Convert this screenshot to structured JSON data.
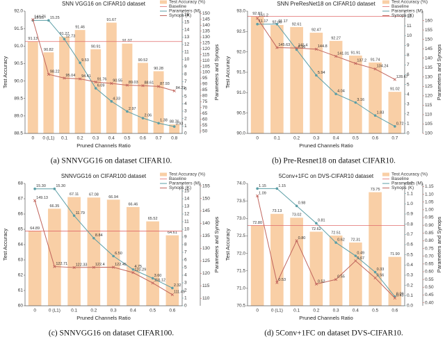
{
  "chart_data": [
    {
      "type": "combo",
      "title": "SNN VGG16 on CIFAR10 dataset",
      "x_label": "Pruned Channels Ratio",
      "y_label": "Test Accuracy",
      "y2_label": "Parameters and Synops",
      "categories": [
        "0",
        "0 (L1)",
        "0.1",
        "0.2",
        "0.3",
        "0.4",
        "0.5",
        "0.6",
        "0.7",
        "0.8"
      ],
      "series": [
        {
          "name": "Test Accuracy (%)",
          "kind": "bar",
          "color": "#f9cfa6",
          "values": [
            91.13,
            90.82,
            91.27,
            91.46,
            90.91,
            91.67,
            91.07,
            90.52,
            90.28,
            88.76
          ]
        },
        {
          "name": "Parameters (M)",
          "kind": "line",
          "axis": "y2",
          "color": "#5b9ea6",
          "values": [
            15.25,
            15.25,
            12.73,
            9.53,
            6.09,
            4.33,
            2.97,
            2.06,
            1.38,
            0.93
          ]
        },
        {
          "name": "Synops (K)",
          "kind": "line",
          "axis": "y3",
          "color": "#c0645c",
          "values": [
            144.76,
            98.22,
            95.04,
            94.41,
            91.76,
            90.55,
            89.03,
            88.61,
            87.93,
            84.21
          ]
        }
      ],
      "baseline": {
        "name": "Baseline",
        "value": 91.13,
        "color": "#e06a6a"
      },
      "ylim": [
        88.5,
        92
      ],
      "yticks": [
        88.5,
        {
          "value": 89,
          "label": "89.0"
        },
        89.5,
        {
          "value": 90,
          "label": "90.0"
        },
        90.5,
        {
          "value": 91,
          "label": "91.0"
        },
        91.5,
        {
          "value": 92,
          "label": "92.0"
        }
      ],
      "y2lim": [
        0,
        16.5
      ],
      "y2ticks": [
        0,
        1,
        2,
        3,
        4,
        5,
        6,
        7,
        8,
        9,
        10,
        11,
        12,
        13,
        14,
        15,
        16
      ],
      "y3lim": [
        48,
        152
      ],
      "y3ticks": [
        50,
        55,
        60,
        65,
        70,
        75,
        80,
        85,
        90,
        95,
        100,
        105,
        110,
        115,
        120,
        125,
        130,
        135,
        140,
        145,
        150
      ]
    },
    {
      "type": "combo",
      "title": "SNN PreResNet18 on CIFAR10 dataset",
      "x_label": "Pruned Channels Ratio",
      "y_label": "Test Accuracy",
      "y2_label": "Parameters and Synops",
      "categories": [
        "0",
        "0.1",
        "0.2",
        "0.3",
        "0.4",
        "0.5",
        "0.6",
        "0.7"
      ],
      "series": [
        {
          "name": "Test Accuracy (%)",
          "kind": "bar",
          "color": "#f9cfa6",
          "values": [
            92.87,
            92.66,
            92.61,
            92.47,
            92.27,
            91.91,
            91.74,
            91.02
          ]
        },
        {
          "name": "Parameters (M)",
          "kind": "line",
          "axis": "y2",
          "color": "#5b9ea6",
          "values": [
            11.17,
            11.17,
            8.56,
            5.94,
            4.04,
            3.16,
            1.83,
            0.72
          ]
        },
        {
          "name": "Synops (K)",
          "kind": "line",
          "axis": "y3",
          "color": "#c0645c",
          "values": [
            161.2,
            145.63,
            145.4,
            144.8,
            141.01,
            137.2,
            134.24,
            128.67
          ]
        }
      ],
      "baseline": {
        "name": "Baseline",
        "value": 92.87,
        "color": "#e06a6a"
      },
      "ylim": [
        90,
        93
      ],
      "yticks": [
        {
          "value": 90,
          "label": "90.0"
        },
        90.5,
        {
          "value": 91,
          "label": "91.0"
        },
        91.5,
        {
          "value": 92,
          "label": "92.0"
        },
        92.5,
        {
          "value": 93,
          "label": "93.0"
        }
      ],
      "y2lim": [
        0,
        12.5
      ],
      "y2ticks": [
        0,
        1,
        2,
        3,
        4,
        5,
        6,
        7,
        8,
        9,
        10,
        11,
        12
      ],
      "y3lim": [
        100,
        165
      ],
      "y3ticks": [
        100,
        105,
        110,
        115,
        120,
        125,
        130,
        135,
        140,
        145,
        150,
        155,
        160
      ]
    },
    {
      "type": "combo",
      "title": "SNNVGG16 on CIFAR100 dataset",
      "x_label": "Pruned Channels Ratio",
      "y_label": "Test Accuracy",
      "y2_label": "Parameters and Synops",
      "categories": [
        "0",
        "0 (L1)",
        "0.1",
        "0.2",
        "0.3",
        "0.4",
        "0.5",
        "0.6"
      ],
      "series": [
        {
          "name": "Test Accuracy (%)",
          "kind": "bar",
          "color": "#f9cfa6",
          "values": [
            64.89,
            66.35,
            67.11,
            67.08,
            66.94,
            66.46,
            65.52,
            64.61
          ]
        },
        {
          "name": "Parameters (M)",
          "kind": "line",
          "axis": "y2",
          "color": "#5b9ea6",
          "values": [
            15.3,
            15.3,
            11.79,
            8.84,
            6.5,
            4.75,
            3.6,
            2.32
          ],
          "value_labels": [
            "15.30",
            "15.30",
            "11.79",
            "8.84",
            "6.50",
            "4.75",
            "3.60",
            "2.32"
          ]
        },
        {
          "name": "Synops (K)",
          "kind": "line",
          "axis": "y3",
          "color": "#c0645c",
          "values": [
            149.13,
            122.71,
            122.33,
            122.4,
            122.45,
            120.29,
            116.12,
            111.45
          ]
        }
      ],
      "baseline": {
        "name": "Baseline",
        "value": 64.89,
        "color": "#e06a6a"
      },
      "ylim": [
        60,
        68
      ],
      "yticks": [
        60,
        61,
        62,
        63,
        64,
        65,
        66,
        67,
        68
      ],
      "y2lim": [
        0,
        16
      ],
      "y2ticks": [
        0,
        1,
        2,
        3,
        4,
        5,
        6,
        7,
        8,
        9,
        10,
        11,
        12,
        13,
        14,
        15
      ],
      "y3lim": [
        107,
        156
      ],
      "y3ticks": [
        110,
        115,
        120,
        125,
        130,
        135,
        140,
        145,
        150,
        155
      ]
    },
    {
      "type": "combo",
      "title": "5Conv+1FC on DVS-CIFAR10 dataset",
      "x_label": "Pruned Channels Ratio",
      "y_label": "Test Accuracy",
      "y2_label": "Parameters and Synops",
      "categories": [
        "0",
        "0 (L1)",
        "0.1",
        "0.2",
        "0.3",
        "0.4",
        "0.5",
        "0.6"
      ],
      "series": [
        {
          "name": "Test Accuracy (%)",
          "kind": "bar",
          "color": "#f9cfa6",
          "values": [
            72.8,
            73.13,
            73.02,
            72.62,
            72.51,
            72.31,
            73.75,
            71.9
          ],
          "value_labels": [
            "72.80",
            "73.13",
            "73.02",
            "72.62",
            "72.51",
            "72.31",
            "73.75",
            "71.90"
          ]
        },
        {
          "name": "Parameters (M)",
          "kind": "line",
          "axis": "y2",
          "color": "#5b9ea6",
          "values": [
            1.15,
            1.15,
            0.98,
            0.81,
            0.62,
            0.49,
            0.33,
            0.09
          ]
        },
        {
          "name": "Synops (K)",
          "kind": "line",
          "axis": "y3",
          "color": "#c0645c",
          "values": [
            1.09,
            0.53,
            0.8,
            0.52,
            0.55,
            0.67,
            0.56,
            0.43
          ],
          "value_labels": [
            "1.09",
            "0.53",
            "0.80",
            "0.52",
            "0.55",
            "0.67",
            "0.56",
            "0.43"
          ]
        }
      ],
      "baseline": {
        "name": "Baseline",
        "value": 72.8,
        "color": "#e06a6a"
      },
      "ylim": [
        70.5,
        74
      ],
      "yticks": [
        70.5,
        {
          "value": 71,
          "label": "71.0"
        },
        71.5,
        {
          "value": 72,
          "label": "72.0"
        },
        72.5,
        {
          "value": 73,
          "label": "73.0"
        },
        73.5,
        {
          "value": 74,
          "label": "74.0"
        }
      ],
      "y2lim": [
        0,
        1.2
      ],
      "y2ticks": [
        {
          "value": 0,
          "label": "0.0"
        },
        0.1,
        0.2,
        0.3,
        0.4,
        0.5,
        0.6,
        0.7,
        0.8,
        0.9,
        {
          "value": 1,
          "label": "1.0"
        },
        1.1,
        1.2
      ],
      "y3lim": [
        0.38,
        1.17
      ],
      "y3ticks": [
        {
          "value": 0.4,
          "label": "0.40"
        },
        0.45,
        {
          "value": 0.5,
          "label": "0.50"
        },
        0.55,
        {
          "value": 0.6,
          "label": "0.60"
        },
        0.65,
        {
          "value": 0.7,
          "label": "0.70"
        },
        0.75,
        {
          "value": 0.8,
          "label": "0.80"
        },
        0.85,
        {
          "value": 0.9,
          "label": "0.90"
        },
        0.95,
        {
          "value": 1,
          "label": "1.00"
        },
        1.05,
        {
          "value": 1.1,
          "label": "1.10"
        },
        1.15
      ]
    }
  ],
  "captions": [
    "(a)  SNNVGG16 on dataset CIFAR10.",
    "(b)  Pre-Resnet18 on dataset CIFAR10.",
    "(c)  SNNVGG16 on dataset CIFAR100.",
    "(d)  5Conv+1FC on dataset DVS-CIFAR10."
  ]
}
